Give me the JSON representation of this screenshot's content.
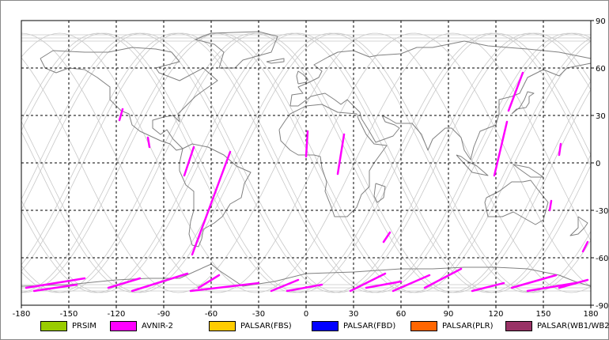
{
  "map": {
    "x_ticks": [
      -180,
      -150,
      -120,
      -90,
      -60,
      -30,
      0,
      30,
      60,
      90,
      120,
      150,
      180
    ],
    "y_ticks": [
      90,
      60,
      30,
      0,
      -30,
      -60,
      -90
    ],
    "xlim": [
      -180,
      180
    ],
    "ylim": [
      -90,
      90
    ],
    "grid": "dashed",
    "colors": {
      "coastline": "#808080",
      "orbit_tracks": "#c8c8c8",
      "grid": "#000000",
      "swath": "#ff00ff"
    },
    "avnir2_swaths": [
      {
        "lon1": -116,
        "lat1": 34,
        "lon2": -118,
        "lat2": 27
      },
      {
        "lon1": -100,
        "lat1": 16,
        "lon2": -99,
        "lat2": 10
      },
      {
        "lon1": -71,
        "lat1": 10,
        "lon2": -77,
        "lat2": -8
      },
      {
        "lon1": -48,
        "lat1": 7,
        "lon2": -72,
        "lat2": -58
      },
      {
        "lon1": 1,
        "lat1": 20,
        "lon2": 0,
        "lat2": 4
      },
      {
        "lon1": 24,
        "lat1": 18,
        "lon2": 20,
        "lat2": -7
      },
      {
        "lon1": 53,
        "lat1": -44,
        "lon2": 49,
        "lat2": -50
      },
      {
        "lon1": 137,
        "lat1": 57,
        "lon2": 128,
        "lat2": 33
      },
      {
        "lon1": 127,
        "lat1": 26,
        "lon2": 119,
        "lat2": -8
      },
      {
        "lon1": 161,
        "lat1": 12,
        "lon2": 160,
        "lat2": 5
      },
      {
        "lon1": 155,
        "lat1": -24,
        "lon2": 154,
        "lat2": -30
      },
      {
        "lon1": 178,
        "lat1": -50,
        "lon2": 175,
        "lat2": -56
      },
      {
        "lon1": -177,
        "lat1": -79,
        "lon2": -140,
        "lat2": -73
      },
      {
        "lon1": -172,
        "lat1": -81,
        "lon2": -145,
        "lat2": -77
      },
      {
        "lon1": -125,
        "lat1": -79,
        "lon2": -105,
        "lat2": -73
      },
      {
        "lon1": -110,
        "lat1": -81,
        "lon2": -75,
        "lat2": -70
      },
      {
        "lon1": -68,
        "lat1": -79,
        "lon2": -55,
        "lat2": -71
      },
      {
        "lon1": -73,
        "lat1": -81,
        "lon2": -30,
        "lat2": -76
      },
      {
        "lon1": -22,
        "lat1": -81,
        "lon2": -5,
        "lat2": -74
      },
      {
        "lon1": -12,
        "lat1": -81,
        "lon2": 10,
        "lat2": -77
      },
      {
        "lon1": 28,
        "lat1": -81,
        "lon2": 50,
        "lat2": -70
      },
      {
        "lon1": 38,
        "lat1": -79,
        "lon2": 60,
        "lat2": -75
      },
      {
        "lon1": 55,
        "lat1": -81,
        "lon2": 78,
        "lat2": -71
      },
      {
        "lon1": 75,
        "lat1": -79,
        "lon2": 98,
        "lat2": -67
      },
      {
        "lon1": 105,
        "lat1": -81,
        "lon2": 125,
        "lat2": -76
      },
      {
        "lon1": 130,
        "lat1": -79,
        "lon2": 158,
        "lat2": -71
      },
      {
        "lon1": 140,
        "lat1": -81,
        "lon2": 170,
        "lat2": -76
      },
      {
        "lon1": 160,
        "lat1": -79,
        "lon2": 178,
        "lat2": -74
      }
    ]
  },
  "legend": [
    {
      "label": "PRSIM",
      "color": "#99cc00"
    },
    {
      "label": "AVNIR-2",
      "color": "#ff00ff"
    },
    {
      "label": "PALSAR(FBS)",
      "color": "#ffcc00"
    },
    {
      "label": "PALSAR(FBD)",
      "color": "#0000ff"
    },
    {
      "label": "PALSAR(PLR)",
      "color": "#ff6600"
    },
    {
      "label": "PALSAR(WB1/WB2)",
      "color": "#993366"
    }
  ]
}
